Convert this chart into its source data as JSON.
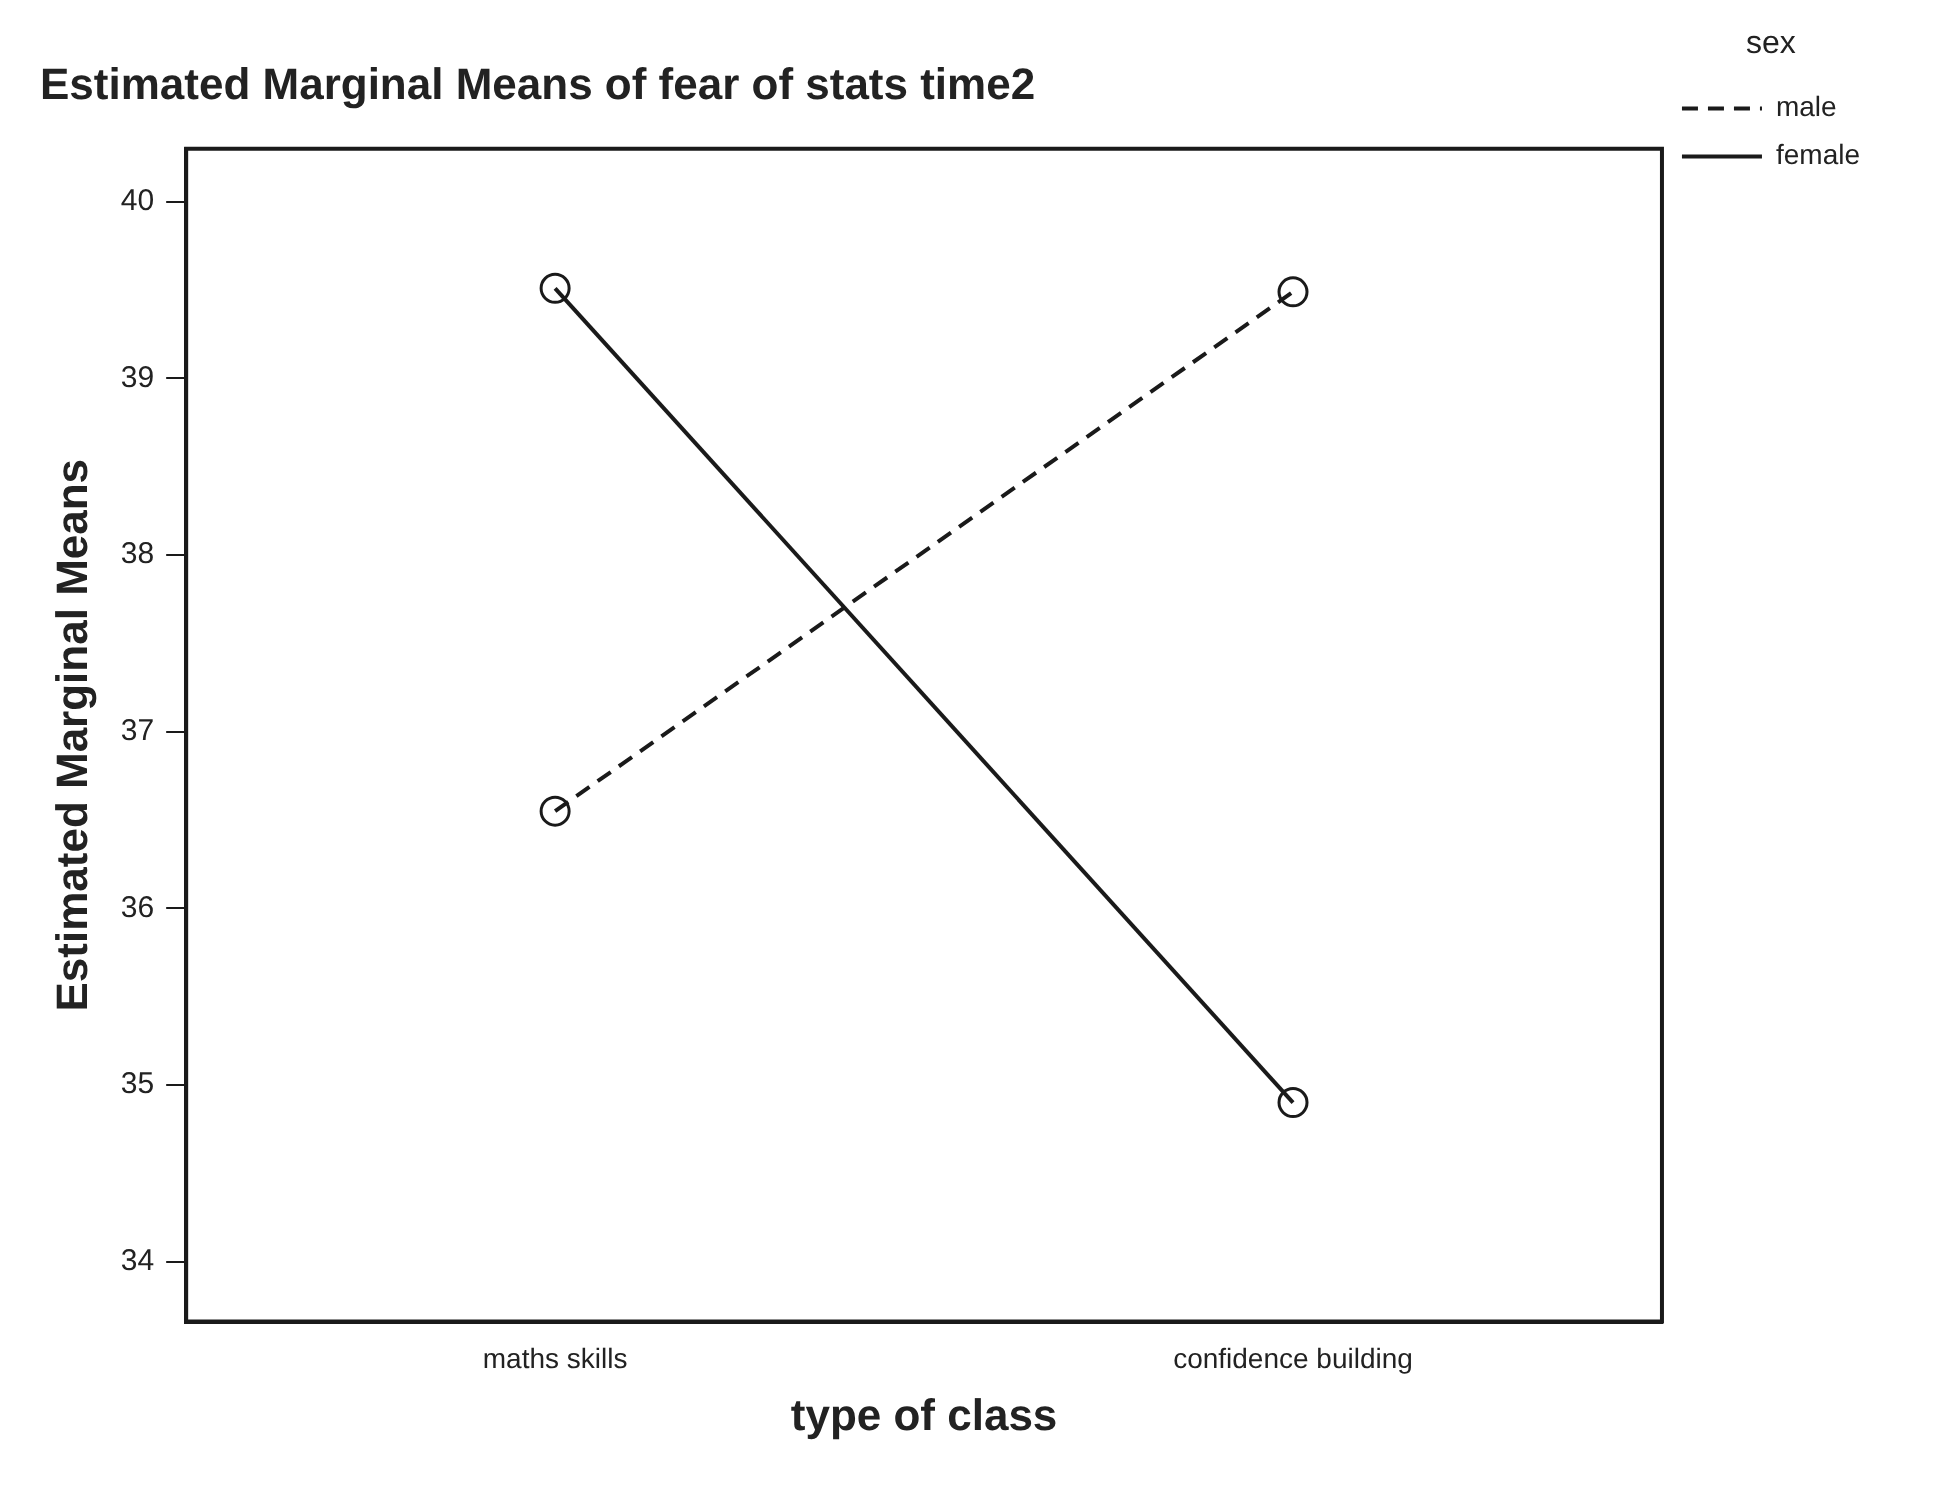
{
  "chart_data": {
    "type": "line",
    "title": "Estimated Marginal Means of fear of stats time2",
    "xlabel": "type of class",
    "ylabel": "Estimated Marginal Means",
    "legend_title": "sex",
    "categories": [
      "maths skills",
      "confidence building"
    ],
    "series": [
      {
        "name": "male",
        "color": "#1a1a1a",
        "values": [
          36.55,
          39.49
        ],
        "line_style": "dashed"
      },
      {
        "name": "female",
        "color": "#1a1a1a",
        "values": [
          39.51,
          34.9
        ],
        "line_style": "solid"
      }
    ],
    "ylim": [
      33.66,
      40.3
    ],
    "yticks": [
      34,
      35,
      36,
      37,
      38,
      39,
      40
    ],
    "grid": false,
    "legend": "top right",
    "marker": "circle"
  }
}
